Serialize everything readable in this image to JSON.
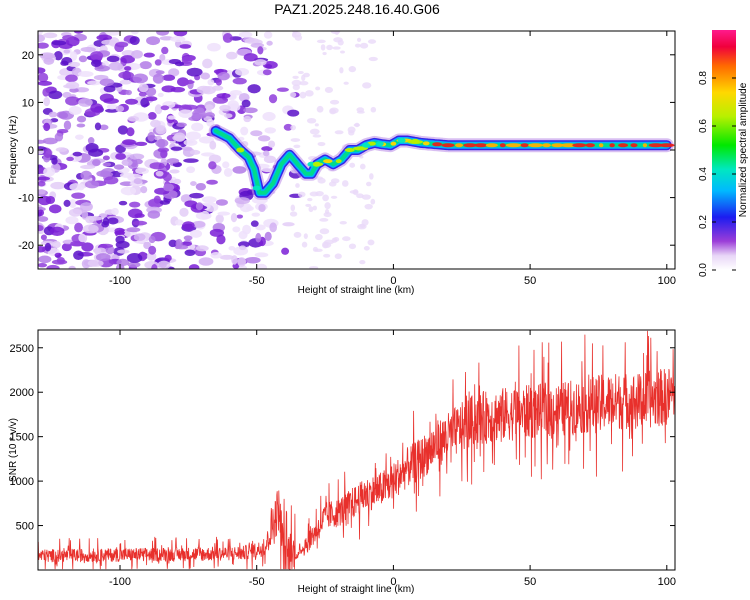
{
  "title": "PAZ1.2025.248.16.40.G06",
  "chart_data": [
    {
      "type": "heatmap",
      "name": "spectrogram",
      "title": "PAZ1.2025.248.16.40.G06",
      "xlabel": "Height of straight line (km)",
      "ylabel": "Frequency (Hz)",
      "xlim": [
        -130,
        103
      ],
      "ylim": [
        -25,
        25
      ],
      "xticks": [
        -100,
        -50,
        0,
        50,
        100
      ],
      "yticks": [
        -20,
        -10,
        0,
        10,
        20
      ],
      "ridge": {
        "x": [
          -65,
          -60,
          -56,
          -53,
          -51,
          -49,
          -47,
          -44,
          -41,
          -38,
          -35,
          -32,
          -30,
          -28,
          -25,
          -22,
          -19,
          -16,
          -13,
          -10,
          -7,
          -4,
          -1,
          2,
          5,
          10,
          20,
          40,
          60,
          80,
          100
        ],
        "y": [
          4,
          2.5,
          0,
          -1.5,
          -4,
          -9,
          -9,
          -7,
          -3,
          -1,
          -3,
          -5,
          -5,
          -3,
          -2,
          -3,
          -2,
          0,
          0,
          1,
          1.5,
          1.2,
          1,
          2,
          2,
          1.5,
          1,
          1,
          1,
          1,
          1
        ]
      },
      "colorbar": {
        "label": "Normalized spectral amplitude",
        "range": [
          0,
          1
        ],
        "ticks": [
          "0.0",
          "0.2",
          "0.4",
          "0.6",
          "0.8"
        ]
      }
    },
    {
      "type": "line",
      "name": "snr",
      "xlabel": "Height of straight line (km)",
      "ylabel": "SNR (10 * v/v)",
      "xlim": [
        -130,
        103
      ],
      "ylim": [
        0,
        2700
      ],
      "xticks": [
        -100,
        -50,
        0,
        50,
        100
      ],
      "yticks": [
        500,
        1000,
        1500,
        2000,
        2500
      ],
      "color": "#e8302c",
      "trend": {
        "x": [
          -130,
          -100,
          -70,
          -55,
          -47,
          -42,
          -40,
          -35,
          -32,
          -28,
          -25,
          -20,
          -15,
          -10,
          -5,
          0,
          5,
          10,
          15,
          20,
          25,
          30,
          40,
          50,
          60,
          70,
          80,
          90,
          100,
          103
        ],
        "y": [
          160,
          170,
          180,
          190,
          250,
          700,
          200,
          160,
          300,
          450,
          600,
          650,
          750,
          850,
          900,
          1000,
          1150,
          1250,
          1400,
          1500,
          1600,
          1700,
          1750,
          1780,
          1800,
          1850,
          1900,
          1900,
          1950,
          2000
        ]
      }
    }
  ]
}
